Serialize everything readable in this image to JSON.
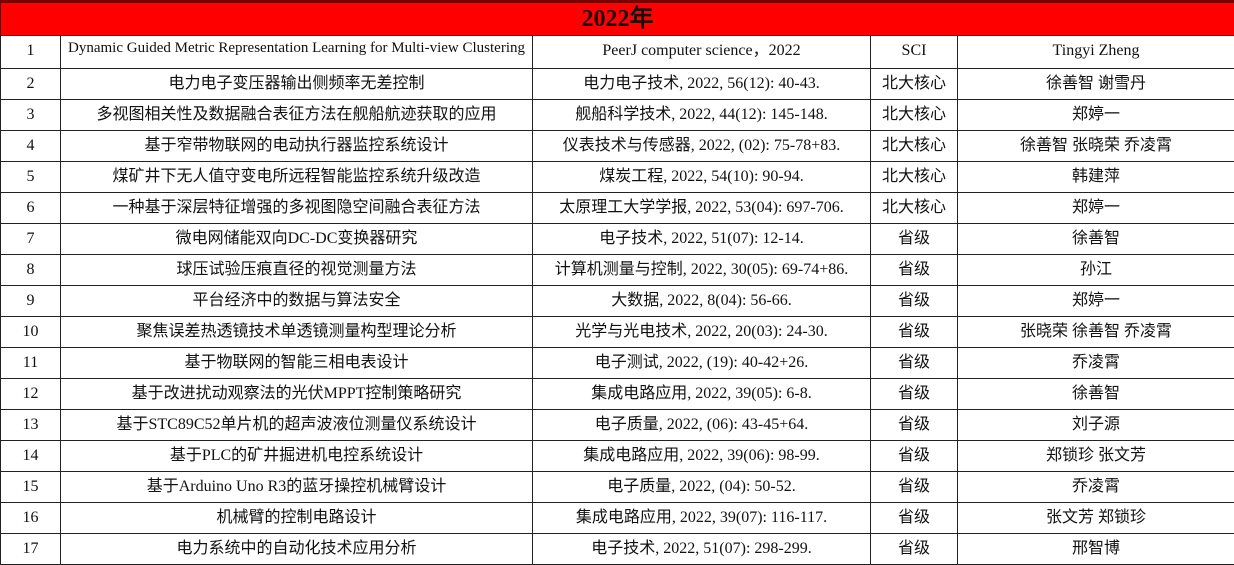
{
  "header": {
    "title": "2022年",
    "color": "#ff0000"
  },
  "rows": [
    {
      "no": "1",
      "title": "Dynamic Guided Metric Representation Learning for Multi-view Clustering",
      "journal": "PeerJ computer science，2022",
      "level": "SCI",
      "authors": "Tingyi Zheng"
    },
    {
      "no": "2",
      "title": "电力电子变压器输出侧频率无差控制",
      "journal": "电力电子技术, 2022, 56(12): 40-43.",
      "level": "北大核心",
      "authors": "徐善智 谢雪丹"
    },
    {
      "no": "3",
      "title": "多视图相关性及数据融合表征方法在舰船航迹获取的应用",
      "journal": "舰船科学技术, 2022, 44(12): 145-148.",
      "level": "北大核心",
      "authors": "郑婷一"
    },
    {
      "no": "4",
      "title": "基于窄带物联网的电动执行器监控系统设计",
      "journal": "仪表技术与传感器, 2022, (02): 75-78+83.",
      "level": "北大核心",
      "authors": "徐善智  张晓荣  乔凌霄"
    },
    {
      "no": "5",
      "title": "煤矿井下无人值守变电所远程智能监控系统升级改造",
      "journal": "煤炭工程, 2022, 54(10): 90-94.",
      "level": "北大核心",
      "authors": "韩建萍"
    },
    {
      "no": "6",
      "title": "一种基于深层特征增强的多视图隐空间融合表征方法",
      "journal": "太原理工大学学报, 2022, 53(04): 697-706.",
      "level": "北大核心",
      "authors": "郑婷一"
    },
    {
      "no": "7",
      "title": "微电网储能双向DC-DC变换器研究",
      "journal": "电子技术, 2022, 51(07): 12-14.",
      "level": "省级",
      "authors": "徐善智"
    },
    {
      "no": "8",
      "title": "球压试验压痕直径的视觉测量方法",
      "journal": "计算机测量与控制, 2022, 30(05): 69-74+86.",
      "level": "省级",
      "authors": "孙江"
    },
    {
      "no": "9",
      "title": "平台经济中的数据与算法安全",
      "journal": "大数据, 2022, 8(04): 56-66.",
      "level": "省级",
      "authors": "郑婷一"
    },
    {
      "no": "10",
      "title": "聚焦误差热透镜技术单透镜测量构型理论分析",
      "journal": "光学与光电技术, 2022, 20(03): 24-30.",
      "level": "省级",
      "authors": "张晓荣  徐善智  乔凌霄"
    },
    {
      "no": "11",
      "title": "基于物联网的智能三相电表设计",
      "journal": "电子测试, 2022, (19): 40-42+26.",
      "level": "省级",
      "authors": "乔凌霄"
    },
    {
      "no": "12",
      "title": "基于改进扰动观察法的光伏MPPT控制策略研究",
      "journal": "集成电路应用, 2022, 39(05): 6-8.",
      "level": "省级",
      "authors": "徐善智"
    },
    {
      "no": "13",
      "title": "基于STC89C52单片机的超声波液位测量仪系统设计",
      "journal": "电子质量, 2022, (06): 43-45+64.",
      "level": "省级",
      "authors": "刘子源"
    },
    {
      "no": "14",
      "title": "基于PLC的矿井掘进机电控系统设计",
      "journal": "集成电路应用, 2022, 39(06): 98-99.",
      "level": "省级",
      "authors": "郑锁珍  张文芳"
    },
    {
      "no": "15",
      "title": "基于Arduino Uno R3的蓝牙操控机械臂设计",
      "journal": "电子质量, 2022, (04): 50-52.",
      "level": "省级",
      "authors": "乔凌霄"
    },
    {
      "no": "16",
      "title": "机械臂的控制电路设计",
      "journal": "集成电路应用, 2022, 39(07): 116-117.",
      "level": "省级",
      "authors": "张文芳  郑锁珍"
    },
    {
      "no": "17",
      "title": "电力系统中的自动化技术应用分析",
      "journal": "电子技术, 2022, 51(07): 298-299.",
      "level": "省级",
      "authors": "邢智博"
    }
  ]
}
